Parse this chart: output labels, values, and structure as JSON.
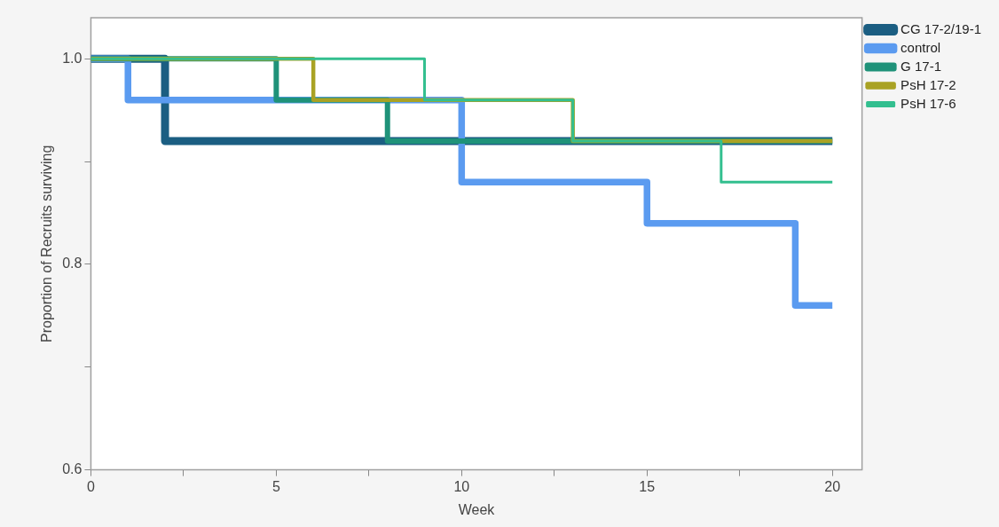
{
  "chart_data": {
    "type": "step",
    "xlabel": "Week",
    "ylabel": "Proportion of Recruits surviving",
    "xlim": [
      0,
      20.8
    ],
    "xticks": [
      0,
      {
        "value": 2.5,
        "label": null
      },
      5,
      {
        "value": 7.5,
        "label": null
      },
      10,
      {
        "value": 12.5,
        "label": null
      },
      15,
      {
        "value": 17.5,
        "label": null
      },
      20
    ],
    "ylim": [
      0.6,
      1.04
    ],
    "yticks": [
      0.6,
      {
        "value": 0.7,
        "label": null
      },
      0.8,
      {
        "value": 0.9,
        "label": null
      },
      {
        "value": 1.0,
        "label": "1.0"
      }
    ],
    "grid": false,
    "legend": "top right",
    "marker": "none",
    "line_style": "solid",
    "series": [
      {
        "name": "CG 17-2/19-1",
        "color": "#1b5e82",
        "x": [
          0,
          2,
          20
        ],
        "values": [
          1,
          0.92,
          0.92
        ]
      },
      {
        "name": "control",
        "color": "#5b9bf0",
        "x": [
          0,
          1,
          10,
          15,
          19,
          20
        ],
        "values": [
          1,
          0.96,
          0.88,
          0.84,
          0.76,
          0.76
        ]
      },
      {
        "name": "G 17-1",
        "color": "#1f9279",
        "x": [
          0,
          5,
          8,
          20
        ],
        "values": [
          1,
          0.96,
          0.92,
          0.92
        ]
      },
      {
        "name": "PsH 17-2",
        "color": "#a9a224",
        "x": [
          0,
          6,
          13,
          20
        ],
        "values": [
          1,
          0.96,
          0.92,
          0.92
        ]
      },
      {
        "name": "PsH 17-6",
        "color": "#33bf8f",
        "x": [
          0,
          9,
          13,
          17,
          20
        ],
        "values": [
          1,
          0.96,
          0.92,
          0.88,
          0.88
        ]
      }
    ]
  }
}
